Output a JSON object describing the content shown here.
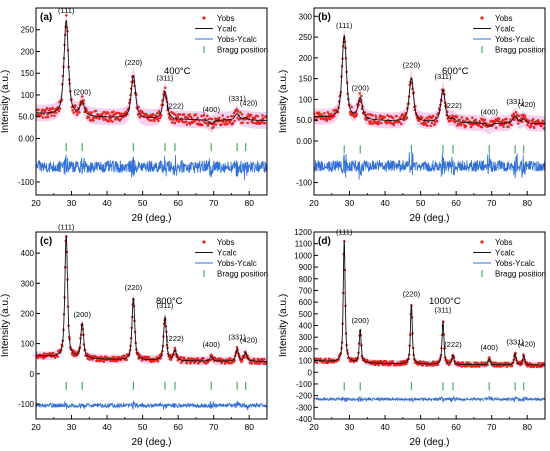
{
  "chart_data": [
    {
      "type": "line",
      "panel_label": "(a)",
      "temperature": "400°C",
      "xlabel": "2θ (deg.)",
      "ylabel": "Intensity (a.u.)",
      "xlim": [
        20,
        85
      ],
      "ylim": [
        -130,
        300
      ],
      "xticks": [
        20,
        30,
        40,
        50,
        60,
        70,
        80
      ],
      "yticks": [
        -100,
        0,
        50,
        100,
        150,
        200,
        250
      ],
      "ytick_labels": [
        "-100",
        "0.00",
        "50.0",
        "100",
        "150",
        "200",
        "250"
      ],
      "legend": [
        "Yobs",
        "Ycalc",
        "Yobs-Ycalc",
        "Bragg position"
      ],
      "background": 40,
      "peaks": [
        {
          "label": "(111)",
          "x": 28.5,
          "y": 258
        },
        {
          "label": "(200)",
          "x": 33.0,
          "y": 70
        },
        {
          "label": "(220)",
          "x": 47.4,
          "y": 138
        },
        {
          "label": "(311)",
          "x": 56.3,
          "y": 103
        },
        {
          "label": "(222)",
          "x": 59.1,
          "y": 38
        },
        {
          "label": "(400)",
          "x": 69.3,
          "y": 30
        },
        {
          "label": "(331)",
          "x": 76.6,
          "y": 55
        },
        {
          "label": "(420)",
          "x": 79.0,
          "y": 45
        }
      ],
      "bragg_y": -20,
      "diff_y": -65
    },
    {
      "type": "line",
      "panel_label": "(b)",
      "temperature": "600°C",
      "xlabel": "2θ (deg.)",
      "ylabel": "Intensity (a.u.)",
      "xlim": [
        20,
        85
      ],
      "ylim": [
        -130,
        320
      ],
      "xticks": [
        20,
        30,
        40,
        50,
        60,
        70,
        80
      ],
      "yticks": [
        -100,
        0,
        50,
        100,
        150,
        200,
        250,
        300
      ],
      "ytick_labels": [
        "-100",
        "0.00",
        "50.0",
        "100",
        "150",
        "200",
        "250",
        "300"
      ],
      "legend": [
        "Yobs",
        "Ycalc",
        "Yobs-Ycalc",
        "Bragg position"
      ],
      "background": 40,
      "peaks": [
        {
          "label": "(111)",
          "x": 28.5,
          "y": 240
        },
        {
          "label": "(200)",
          "x": 33.0,
          "y": 90
        },
        {
          "label": "(220)",
          "x": 47.4,
          "y": 145
        },
        {
          "label": "(311)",
          "x": 56.3,
          "y": 118
        },
        {
          "label": "(222)",
          "x": 59.1,
          "y": 48
        },
        {
          "label": "(400)",
          "x": 69.3,
          "y": 32
        },
        {
          "label": "(331)",
          "x": 76.6,
          "y": 58
        },
        {
          "label": "(420)",
          "x": 79.0,
          "y": 50
        }
      ],
      "bragg_y": -20,
      "diff_y": -60
    },
    {
      "type": "line",
      "panel_label": "(c)",
      "temperature": "800°C",
      "xlabel": "2θ (deg.)",
      "ylabel": "Intensity (a.u.)",
      "xlim": [
        20,
        85
      ],
      "ylim": [
        -150,
        470
      ],
      "xticks": [
        20,
        30,
        40,
        50,
        60,
        70,
        80
      ],
      "yticks": [
        -100,
        0,
        100,
        200,
        300,
        400
      ],
      "ytick_labels": [
        "-100",
        "0",
        "100",
        "200",
        "300",
        "400"
      ],
      "legend": [
        "Yobs",
        "Ycalc",
        "Yobs-Ycalc",
        "Bragg position"
      ],
      "background": 40,
      "peaks": [
        {
          "label": "(111)",
          "x": 28.5,
          "y": 445
        },
        {
          "label": "(200)",
          "x": 33.0,
          "y": 155
        },
        {
          "label": "(220)",
          "x": 47.4,
          "y": 245
        },
        {
          "label": "(311)",
          "x": 56.3,
          "y": 185
        },
        {
          "label": "(222)",
          "x": 59.1,
          "y": 75
        },
        {
          "label": "(400)",
          "x": 69.3,
          "y": 55
        },
        {
          "label": "(331)",
          "x": 76.6,
          "y": 80
        },
        {
          "label": "(420)",
          "x": 79.0,
          "y": 70
        }
      ],
      "bragg_y": -40,
      "diff_y": -105
    },
    {
      "type": "line",
      "panel_label": "(d)",
      "temperature": "1000°C",
      "xlabel": "2θ (deg.)",
      "ylabel": "Intensity (a.u.)",
      "xlim": [
        20,
        85
      ],
      "ylim": [
        -400,
        1200
      ],
      "xticks": [
        20,
        30,
        40,
        50,
        60,
        70,
        80
      ],
      "yticks": [
        -400,
        -300,
        -200,
        -100,
        0,
        100,
        200,
        300,
        400,
        500,
        600,
        700,
        800,
        900,
        1000,
        1100,
        1200
      ],
      "ytick_labels": [
        "-400",
        "-300",
        "-200",
        "-100",
        "0",
        "100",
        "200",
        "300",
        "400",
        "500",
        "600",
        "700",
        "800",
        "900",
        "1000",
        "1100",
        "1200"
      ],
      "legend": [
        "Yobs",
        "Ycalc",
        "Yobs-Ycalc",
        "Bragg position"
      ],
      "background": 60,
      "peaks": [
        {
          "label": "(111)",
          "x": 28.5,
          "y": 1100
        },
        {
          "label": "(200)",
          "x": 33.0,
          "y": 340
        },
        {
          "label": "(220)",
          "x": 47.4,
          "y": 570
        },
        {
          "label": "(311)",
          "x": 56.3,
          "y": 430
        },
        {
          "label": "(222)",
          "x": 59.1,
          "y": 135
        },
        {
          "label": "(400)",
          "x": 69.3,
          "y": 110
        },
        {
          "label": "(331)",
          "x": 76.6,
          "y": 160
        },
        {
          "label": "(420)",
          "x": 79.0,
          "y": 140
        }
      ],
      "bragg_y": -120,
      "diff_y": -230
    }
  ],
  "colors": {
    "yobs": "#e8231c",
    "ycalc": "#111111",
    "diff": "#2f6fd6",
    "bragg": "#2fa84f",
    "band": "#f2c4ee"
  }
}
